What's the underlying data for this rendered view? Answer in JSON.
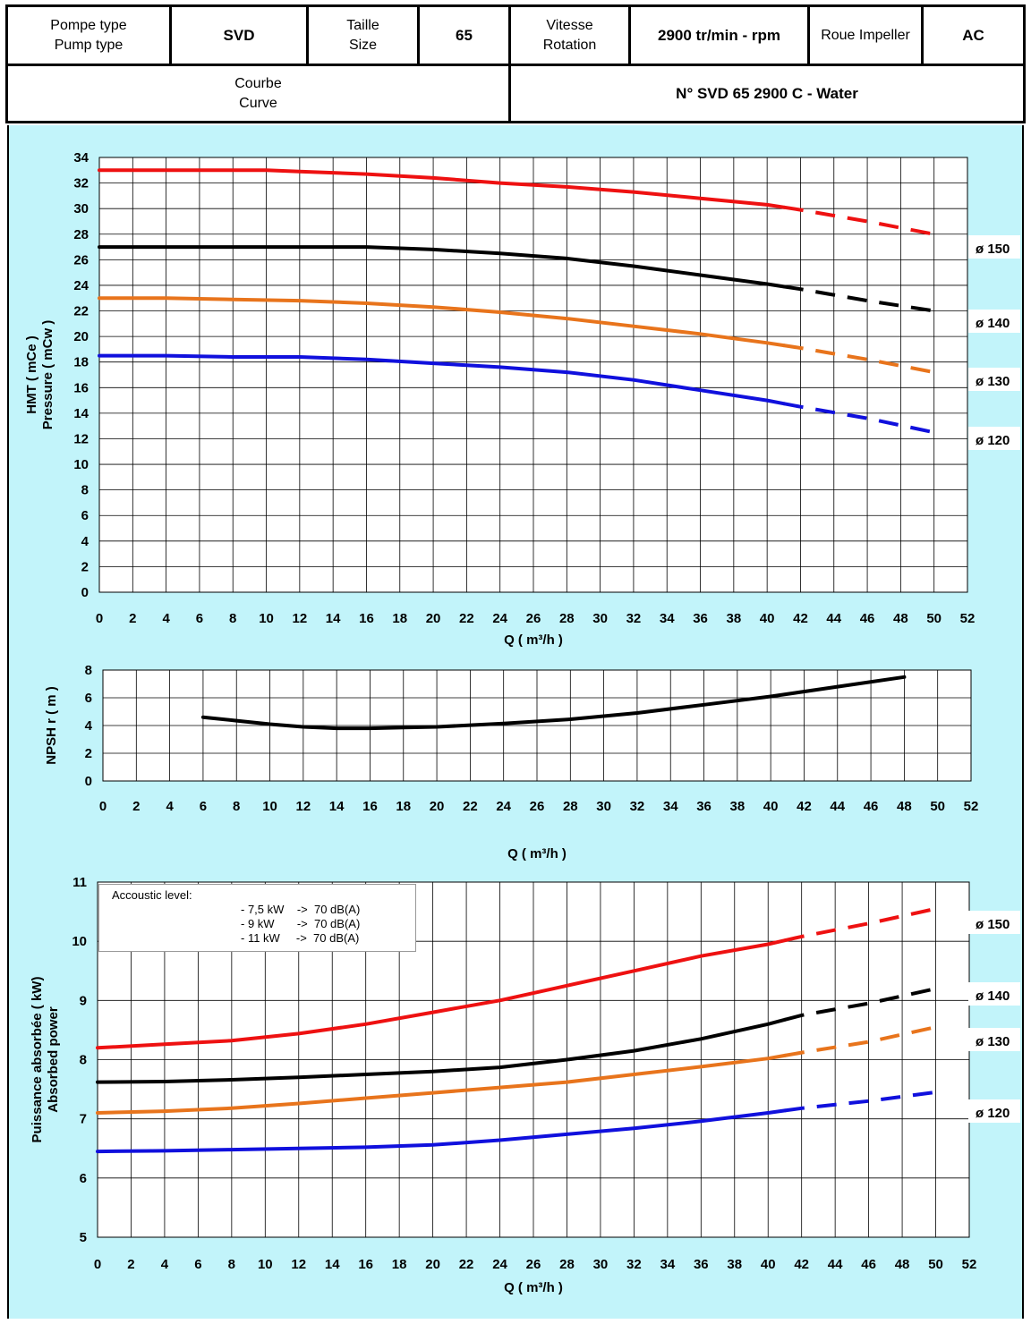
{
  "header": {
    "pump_type_label": "Pompe type\nPump type",
    "pump_type_value": "SVD",
    "size_label": "Taille\nSize",
    "size_value": "65",
    "rotation_label": "Vitesse\nRotation",
    "rotation_value": "2900 tr/min - rpm",
    "impeller_label": "Roue Impeller",
    "impeller_value": "AC",
    "curve_label": "Courbe\nCurve",
    "curve_value": "N° SVD 65 2900 C - Water"
  },
  "note": {
    "title": "Accoustic level:",
    "lines": [
      "- 7,5 kW    ->  70 dB(A)",
      "- 9 kW       ->  70 dB(A)",
      "- 11 kW     ->  70 dB(A)"
    ]
  },
  "colors": {
    "red": "#ee1111",
    "black": "#000000",
    "orange": "#e8741c",
    "blue": "#1010dd",
    "background": "#c2f4fa"
  },
  "chart_data": [
    {
      "type": "line",
      "title": "",
      "xlabel": "Q ( m³/h )",
      "ylabel": "HMT ( mCe )\nPressure ( mCw )",
      "xlim": [
        0,
        52
      ],
      "ylim": [
        0,
        34
      ],
      "xstep": 2,
      "ystep": 2,
      "grid": true,
      "dashed_from_x": 41,
      "series": [
        {
          "name": "ø 150",
          "color": "red",
          "x": [
            0,
            4,
            8,
            10,
            12,
            16,
            20,
            24,
            28,
            32,
            36,
            40,
            42,
            46,
            50
          ],
          "y": [
            33,
            33,
            33,
            33,
            32.9,
            32.7,
            32.4,
            32.0,
            31.7,
            31.3,
            30.8,
            30.3,
            29.9,
            29.0,
            28.0
          ]
        },
        {
          "name": "ø 140",
          "color": "black",
          "x": [
            0,
            4,
            8,
            12,
            16,
            20,
            24,
            28,
            32,
            36,
            40,
            42,
            46,
            50
          ],
          "y": [
            27,
            27,
            27,
            27,
            27,
            26.8,
            26.5,
            26.1,
            25.5,
            24.8,
            24.1,
            23.7,
            22.8,
            22.0
          ]
        },
        {
          "name": "ø 130",
          "color": "orange",
          "x": [
            0,
            4,
            8,
            12,
            16,
            20,
            24,
            28,
            32,
            36,
            40,
            42,
            46,
            50
          ],
          "y": [
            23,
            23,
            22.9,
            22.8,
            22.6,
            22.3,
            21.9,
            21.4,
            20.8,
            20.2,
            19.5,
            19.1,
            18.2,
            17.2
          ]
        },
        {
          "name": "ø 120",
          "color": "blue",
          "x": [
            0,
            4,
            8,
            12,
            16,
            20,
            24,
            28,
            32,
            36,
            40,
            42,
            46,
            50
          ],
          "y": [
            18.5,
            18.5,
            18.4,
            18.4,
            18.2,
            17.9,
            17.6,
            17.2,
            16.6,
            15.8,
            15.0,
            14.5,
            13.6,
            12.5
          ]
        }
      ]
    },
    {
      "type": "line",
      "title": "",
      "xlabel": "Q ( m³/h )",
      "ylabel": "NPSH r ( m )",
      "xlim": [
        0,
        52
      ],
      "ylim": [
        0,
        8
      ],
      "xstep": 2,
      "ystep": 2,
      "grid": true,
      "series": [
        {
          "name": "",
          "color": "black",
          "x": [
            6,
            8,
            10,
            12,
            14,
            16,
            18,
            20,
            24,
            28,
            32,
            36,
            40,
            44,
            48
          ],
          "y": [
            4.6,
            4.35,
            4.1,
            3.9,
            3.8,
            3.8,
            3.85,
            3.9,
            4.15,
            4.45,
            4.9,
            5.5,
            6.1,
            6.8,
            7.5
          ]
        }
      ]
    },
    {
      "type": "line",
      "title": "",
      "xlabel": "Q ( m³/h )",
      "ylabel": "Puissance absorbée ( kW)\nAbsorbed power",
      "xlim": [
        0,
        52
      ],
      "ylim": [
        5,
        11
      ],
      "xstep": 2,
      "ystep": 1,
      "grid": true,
      "dashed_from_x": 41,
      "series": [
        {
          "name": "ø 150",
          "color": "red",
          "x": [
            0,
            4,
            8,
            12,
            16,
            20,
            24,
            28,
            32,
            36,
            40,
            42,
            46,
            50
          ],
          "y": [
            8.2,
            8.26,
            8.32,
            8.44,
            8.6,
            8.8,
            9.0,
            9.25,
            9.5,
            9.75,
            9.95,
            10.08,
            10.3,
            10.55
          ]
        },
        {
          "name": "ø 140",
          "color": "black",
          "x": [
            0,
            4,
            8,
            12,
            16,
            20,
            24,
            28,
            32,
            36,
            40,
            42,
            46,
            50
          ],
          "y": [
            7.62,
            7.63,
            7.66,
            7.7,
            7.75,
            7.8,
            7.87,
            8.0,
            8.15,
            8.35,
            8.6,
            8.75,
            8.95,
            9.2
          ]
        },
        {
          "name": "ø 130",
          "color": "orange",
          "x": [
            0,
            4,
            8,
            12,
            16,
            20,
            24,
            28,
            32,
            36,
            40,
            42,
            46,
            50
          ],
          "y": [
            7.1,
            7.13,
            7.18,
            7.26,
            7.35,
            7.44,
            7.53,
            7.62,
            7.75,
            7.88,
            8.02,
            8.12,
            8.3,
            8.55
          ]
        },
        {
          "name": "ø 120",
          "color": "blue",
          "x": [
            0,
            4,
            8,
            12,
            16,
            20,
            24,
            28,
            32,
            36,
            40,
            42,
            46,
            50
          ],
          "y": [
            6.45,
            6.46,
            6.48,
            6.5,
            6.52,
            6.56,
            6.64,
            6.74,
            6.84,
            6.96,
            7.1,
            7.18,
            7.3,
            7.45
          ]
        }
      ]
    }
  ]
}
